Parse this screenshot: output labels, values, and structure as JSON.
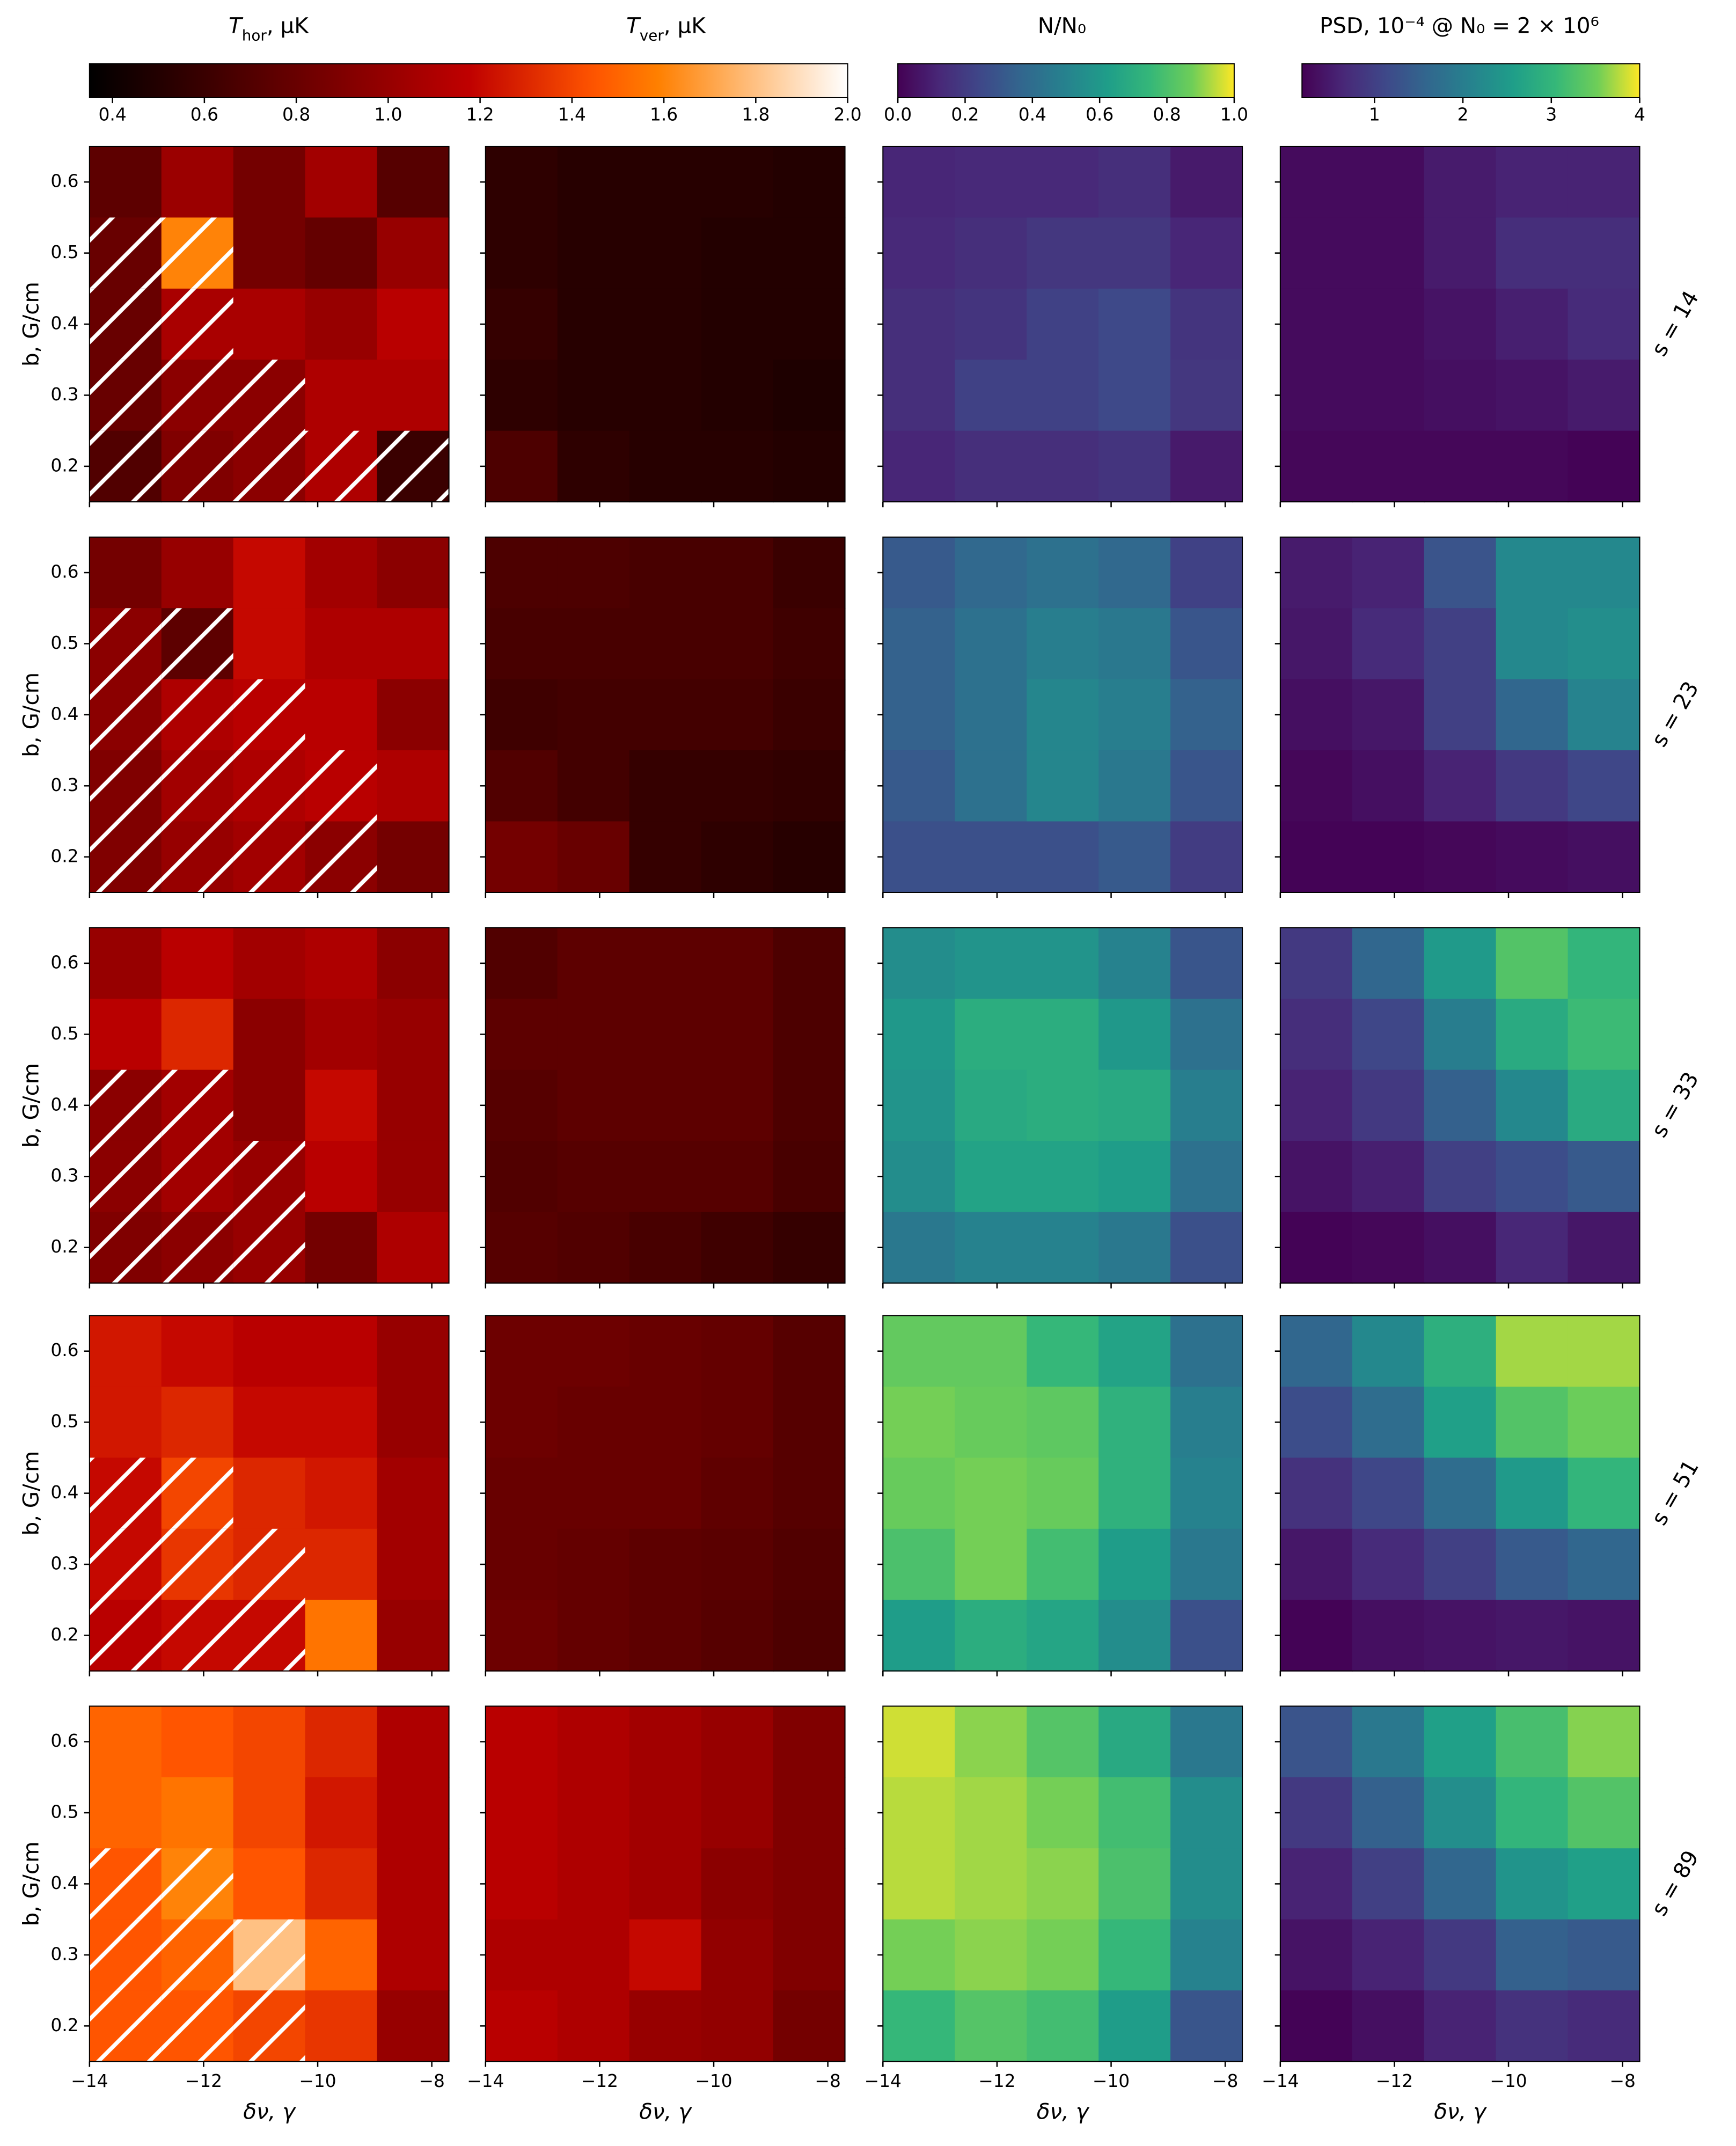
{
  "chart_data": {
    "type": "heatmap",
    "xlabel": "δν, γ",
    "ylabel": "b, G/cm",
    "x": [
      -13.37,
      -12.11,
      -10.85,
      -9.59,
      -8.33
    ],
    "y": [
      0.6,
      0.5,
      0.4,
      0.3,
      0.2
    ],
    "xlim": [
      -14,
      -7.7
    ],
    "ylim": [
      0.15,
      0.65
    ],
    "xticks": [
      {
        "value": -14,
        "label": "−14"
      },
      {
        "value": -12,
        "label": "−12"
      },
      {
        "value": -10,
        "label": "−10"
      },
      {
        "value": -8,
        "label": "−8"
      }
    ],
    "yticks": [
      0.2,
      0.3,
      0.4,
      0.5,
      0.6
    ],
    "colorbars": [
      {
        "cmap": "gist_heat",
        "vlim": [
          0.35,
          2.0
        ],
        "ticks": [
          0.4,
          0.6,
          0.8,
          {
            "value": 1,
            "label": "1.0"
          },
          1.2,
          1.4,
          1.6,
          1.8,
          {
            "value": 2,
            "label": "2.0"
          }
        ]
      },
      {
        "cmap": "viridis",
        "vlim": [
          0,
          1
        ],
        "ticks": [
          {
            "value": 0,
            "label": "0.0"
          },
          0.2,
          0.4,
          0.6,
          0.8,
          {
            "value": 1,
            "label": "1.0"
          }
        ]
      },
      {
        "cmap": "viridis",
        "vlim": [
          0.18,
          4
        ],
        "ticks": [
          1,
          2,
          3,
          4
        ]
      }
    ],
    "columns": [
      {
        "title": [
          "T",
          "hor",
          ", μK"
        ],
        "colorbar": 0
      },
      {
        "title": [
          "T",
          "ver",
          ", μK"
        ],
        "colorbar": 0
      },
      {
        "title": "N/N₀",
        "colorbar": 1
      },
      {
        "title": "PSD, 10⁻⁴ @ N₀ = 2 × 10⁶",
        "colorbar": 2
      }
    ],
    "rows": [
      {
        "label": "s = 14",
        "z": [
          [
            [
              0.75,
              1.02,
              0.85,
              1.05,
              0.72
            ],
            [
              0.8,
              1.6,
              0.85,
              0.78,
              1.0
            ],
            [
              0.8,
              1.08,
              1.08,
              1.0,
              1.15
            ],
            [
              0.8,
              0.95,
              0.95,
              1.1,
              1.1
            ],
            [
              0.7,
              0.9,
              0.95,
              1.1,
              0.6
            ]
          ],
          [
            [
              0.55,
              0.52,
              0.52,
              0.52,
              0.5
            ],
            [
              0.55,
              0.52,
              0.52,
              0.5,
              0.5
            ],
            [
              0.58,
              0.52,
              0.52,
              0.5,
              0.5
            ],
            [
              0.55,
              0.52,
              0.52,
              0.5,
              0.48
            ],
            [
              0.68,
              0.55,
              0.52,
              0.52,
              0.5
            ]
          ],
          [
            [
              0.12,
              0.13,
              0.13,
              0.15,
              0.08
            ],
            [
              0.13,
              0.15,
              0.18,
              0.18,
              0.12
            ],
            [
              0.15,
              0.17,
              0.22,
              0.25,
              0.17
            ],
            [
              0.15,
              0.22,
              0.22,
              0.25,
              0.18
            ],
            [
              0.12,
              0.15,
              0.15,
              0.17,
              0.08
            ]
          ],
          [
            [
              0.3,
              0.3,
              0.5,
              0.6,
              0.6
            ],
            [
              0.3,
              0.3,
              0.5,
              0.75,
              0.75
            ],
            [
              0.3,
              0.3,
              0.4,
              0.55,
              0.7
            ],
            [
              0.3,
              0.3,
              0.35,
              0.4,
              0.5
            ],
            [
              0.25,
              0.25,
              0.25,
              0.25,
              0.2
            ]
          ]
        ],
        "hatch": [
          [
            0,
            0,
            0,
            0,
            0
          ],
          [
            1,
            1,
            0,
            0,
            0
          ],
          [
            1,
            1,
            0,
            0,
            0
          ],
          [
            1,
            1,
            1,
            0,
            0
          ],
          [
            1,
            1,
            1,
            1,
            1
          ]
        ]
      },
      {
        "label": "s = 23",
        "z": [
          [
            [
              0.85,
              1.0,
              1.2,
              1.05,
              0.95
            ],
            [
              0.95,
              0.75,
              1.2,
              1.1,
              1.1
            ],
            [
              0.95,
              1.1,
              1.15,
              1.15,
              0.95
            ],
            [
              0.9,
              1.05,
              1.1,
              1.15,
              1.1
            ],
            [
              0.9,
              1.0,
              1.05,
              0.95,
              0.85
            ]
          ],
          [
            [
              0.68,
              0.68,
              0.66,
              0.66,
              0.6
            ],
            [
              0.66,
              0.66,
              0.66,
              0.66,
              0.62
            ],
            [
              0.62,
              0.64,
              0.64,
              0.64,
              0.6
            ],
            [
              0.7,
              0.64,
              0.58,
              0.58,
              0.56
            ],
            [
              0.85,
              0.8,
              0.58,
              0.55,
              0.52
            ]
          ],
          [
            [
              0.32,
              0.38,
              0.42,
              0.38,
              0.22
            ],
            [
              0.35,
              0.42,
              0.48,
              0.45,
              0.3
            ],
            [
              0.35,
              0.42,
              0.52,
              0.48,
              0.35
            ],
            [
              0.32,
              0.42,
              0.52,
              0.45,
              0.3
            ],
            [
              0.28,
              0.28,
              0.28,
              0.32,
              0.2
            ]
          ],
          [
            [
              0.5,
              0.6,
              1.3,
              2.2,
              2.2
            ],
            [
              0.45,
              0.7,
              1.0,
              2.2,
              2.3
            ],
            [
              0.35,
              0.45,
              1.0,
              1.6,
              2.1
            ],
            [
              0.25,
              0.35,
              0.6,
              0.9,
              1.1
            ],
            [
              0.2,
              0.2,
              0.25,
              0.3,
              0.35
            ]
          ]
        ],
        "hatch": [
          [
            0,
            0,
            0,
            0,
            0
          ],
          [
            1,
            1,
            0,
            0,
            0
          ],
          [
            1,
            1,
            1,
            0,
            0
          ],
          [
            1,
            1,
            1,
            1,
            0
          ],
          [
            1,
            1,
            1,
            1,
            0
          ]
        ]
      },
      {
        "label": "s = 33",
        "z": [
          [
            [
              1.0,
              1.15,
              1.05,
              1.1,
              0.95
            ],
            [
              1.15,
              1.3,
              0.95,
              1.05,
              1.0
            ],
            [
              0.95,
              1.05,
              0.95,
              1.2,
              1.0
            ],
            [
              0.95,
              1.05,
              1.0,
              1.15,
              1.0
            ],
            [
              0.9,
              0.95,
              1.0,
              0.85,
              1.1
            ]
          ],
          [
            [
              0.7,
              0.75,
              0.75,
              0.75,
              0.68
            ],
            [
              0.75,
              0.75,
              0.75,
              0.75,
              0.68
            ],
            [
              0.72,
              0.75,
              0.75,
              0.75,
              0.68
            ],
            [
              0.7,
              0.72,
              0.72,
              0.72,
              0.66
            ],
            [
              0.72,
              0.7,
              0.66,
              0.62,
              0.58
            ]
          ],
          [
            [
              0.55,
              0.58,
              0.58,
              0.5,
              0.3
            ],
            [
              0.6,
              0.7,
              0.7,
              0.6,
              0.42
            ],
            [
              0.58,
              0.68,
              0.7,
              0.68,
              0.48
            ],
            [
              0.55,
              0.65,
              0.65,
              0.62,
              0.42
            ],
            [
              0.45,
              0.5,
              0.5,
              0.45,
              0.28
            ]
          ],
          [
            [
              0.9,
              1.6,
              2.5,
              3.3,
              3.0
            ],
            [
              0.75,
              1.1,
              2.0,
              2.8,
              3.1
            ],
            [
              0.6,
              0.9,
              1.5,
              2.2,
              2.8
            ],
            [
              0.4,
              0.55,
              1.0,
              1.2,
              1.4
            ],
            [
              0.2,
              0.25,
              0.35,
              0.65,
              0.45
            ]
          ]
        ],
        "hatch": [
          [
            0,
            0,
            0,
            0,
            0
          ],
          [
            0,
            0,
            0,
            0,
            0
          ],
          [
            1,
            1,
            0,
            0,
            0
          ],
          [
            1,
            1,
            1,
            0,
            0
          ],
          [
            1,
            1,
            1,
            0,
            0
          ]
        ]
      },
      {
        "label": "s = 51",
        "z": [
          [
            [
              1.25,
              1.2,
              1.15,
              1.15,
              1.0
            ],
            [
              1.25,
              1.3,
              1.2,
              1.2,
              1.0
            ],
            [
              1.2,
              1.4,
              1.3,
              1.25,
              1.05
            ],
            [
              1.2,
              1.35,
              1.3,
              1.3,
              1.05
            ],
            [
              1.15,
              1.2,
              1.2,
              1.55,
              1.0
            ]
          ],
          [
            [
              0.82,
              0.82,
              0.8,
              0.78,
              0.72
            ],
            [
              0.82,
              0.8,
              0.8,
              0.78,
              0.72
            ],
            [
              0.8,
              0.8,
              0.8,
              0.76,
              0.72
            ],
            [
              0.8,
              0.78,
              0.75,
              0.74,
              0.7
            ],
            [
              0.82,
              0.78,
              0.75,
              0.72,
              0.68
            ]
          ],
          [
            [
              0.85,
              0.85,
              0.75,
              0.65,
              0.42
            ],
            [
              0.88,
              0.86,
              0.84,
              0.72,
              0.48
            ],
            [
              0.86,
              0.88,
              0.86,
              0.72,
              0.5
            ],
            [
              0.8,
              0.88,
              0.78,
              0.62,
              0.45
            ],
            [
              0.62,
              0.7,
              0.66,
              0.55,
              0.28
            ]
          ],
          [
            [
              1.6,
              2.2,
              2.9,
              3.7,
              3.7
            ],
            [
              1.2,
              1.7,
              2.6,
              3.3,
              3.5
            ],
            [
              0.8,
              1.1,
              1.7,
              2.5,
              3.0
            ],
            [
              0.45,
              0.7,
              1.0,
              1.4,
              1.6
            ],
            [
              0.2,
              0.35,
              0.4,
              0.45,
              0.4
            ]
          ]
        ],
        "hatch": [
          [
            0,
            0,
            0,
            0,
            0
          ],
          [
            0,
            0,
            0,
            0,
            0
          ],
          [
            1,
            1,
            0,
            0,
            0
          ],
          [
            1,
            1,
            1,
            0,
            0
          ],
          [
            1,
            1,
            1,
            0,
            0
          ]
        ]
      },
      {
        "label": "s = 89",
        "z": [
          [
            [
              1.5,
              1.45,
              1.4,
              1.3,
              1.1
            ],
            [
              1.5,
              1.55,
              1.4,
              1.25,
              1.1
            ],
            [
              1.45,
              1.6,
              1.45,
              1.3,
              1.1
            ],
            [
              1.45,
              1.5,
              1.8,
              1.5,
              1.1
            ],
            [
              1.45,
              1.45,
              1.4,
              1.35,
              1.0
            ]
          ],
          [
            [
              1.15,
              1.1,
              1.05,
              1.0,
              0.9
            ],
            [
              1.15,
              1.1,
              1.05,
              1.0,
              0.9
            ],
            [
              1.15,
              1.1,
              1.05,
              0.95,
              0.9
            ],
            [
              1.1,
              1.1,
              1.2,
              0.98,
              0.9
            ],
            [
              1.15,
              1.1,
              1.0,
              0.98,
              0.85
            ]
          ],
          [
            [
              0.96,
              0.9,
              0.82,
              0.68,
              0.45
            ],
            [
              0.94,
              0.92,
              0.88,
              0.78,
              0.55
            ],
            [
              0.94,
              0.92,
              0.9,
              0.8,
              0.55
            ],
            [
              0.88,
              0.9,
              0.88,
              0.75,
              0.5
            ],
            [
              0.75,
              0.82,
              0.78,
              0.62,
              0.3
            ]
          ],
          [
            [
              1.3,
              1.9,
              2.6,
              3.2,
              3.6
            ],
            [
              0.9,
              1.5,
              2.3,
              3.0,
              3.3
            ],
            [
              0.6,
              1.0,
              1.6,
              2.4,
              2.6
            ],
            [
              0.4,
              0.6,
              0.9,
              1.5,
              1.4
            ],
            [
              0.2,
              0.35,
              0.6,
              0.8,
              0.7
            ]
          ]
        ],
        "hatch": [
          [
            0,
            0,
            0,
            0,
            0
          ],
          [
            0,
            0,
            0,
            0,
            0
          ],
          [
            1,
            1,
            0,
            0,
            0
          ],
          [
            1,
            1,
            1,
            0,
            0
          ],
          [
            1,
            1,
            1,
            0,
            0
          ]
        ]
      }
    ]
  }
}
